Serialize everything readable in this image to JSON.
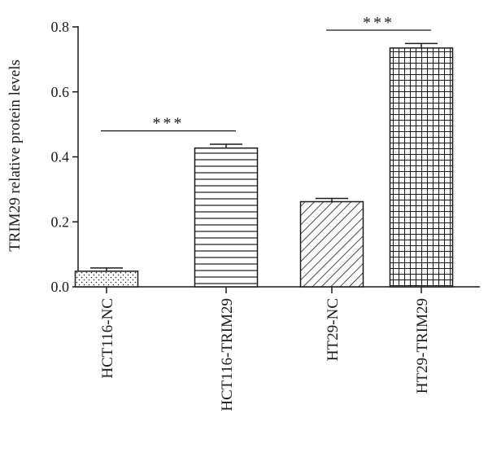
{
  "chart_data": {
    "type": "bar",
    "ylabel": "TRIM29 relative protein levels",
    "categories": [
      "HCT116-NC",
      "HCT116-TRIM29",
      "HT29-NC",
      "HT29-TRIM29"
    ],
    "values": [
      0.048,
      0.427,
      0.262,
      0.735
    ],
    "errors": [
      0.01,
      0.012,
      0.01,
      0.014
    ],
    "patterns": [
      "dots",
      "horizontal-lines",
      "diagonal-hatch",
      "grid"
    ],
    "ylim": [
      0,
      0.8
    ],
    "yticks": [
      0.0,
      0.2,
      0.4,
      0.6,
      0.8
    ],
    "ytick_labels": [
      "0.0",
      "0.2",
      "0.4",
      "0.6",
      "0.8"
    ],
    "annotations": [
      {
        "text": "***",
        "from": "HCT116-NC",
        "to": "HCT116-TRIM29",
        "y": 0.48
      },
      {
        "text": "***",
        "from": "HT29-NC",
        "to": "HT29-TRIM29",
        "y": 0.79
      }
    ],
    "grid": false,
    "colors": {
      "bar_fill": "#ffffff",
      "stroke": "#1a1a1a"
    }
  }
}
